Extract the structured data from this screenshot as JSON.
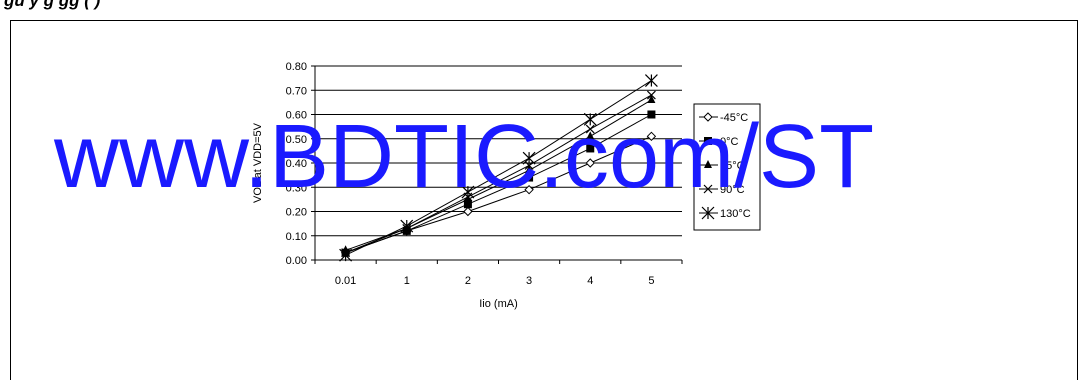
{
  "heading": "gu    y  g        gg    (       )",
  "watermark": "www.BDTIC.com/ST",
  "chart_data": {
    "type": "line",
    "xlabel": "Iio (mA)",
    "ylabel": "VOL at VDD=5V",
    "categories": [
      "0.01",
      "1",
      "2",
      "3",
      "4",
      "5"
    ],
    "yticks": [
      "0.00",
      "0.10",
      "0.20",
      "0.30",
      "0.40",
      "0.50",
      "0.60",
      "0.70",
      "0.80"
    ],
    "ylim": [
      0,
      0.8
    ],
    "grid": true,
    "legend_position": "right",
    "series": [
      {
        "name": "-45°C",
        "marker": "diamond-open",
        "values": [
          0.03,
          0.12,
          0.2,
          0.29,
          0.4,
          0.51
        ]
      },
      {
        "name": "0°C",
        "marker": "square-filled",
        "values": [
          0.03,
          0.12,
          0.23,
          0.34,
          0.46,
          0.6
        ]
      },
      {
        "name": "25°C",
        "marker": "triangle-filled",
        "values": [
          0.04,
          0.13,
          0.25,
          0.37,
          0.51,
          0.66
        ]
      },
      {
        "name": "90°C",
        "marker": "x",
        "values": [
          0.03,
          0.13,
          0.26,
          0.39,
          0.54,
          0.68
        ]
      },
      {
        "name": "130°C",
        "marker": "star",
        "values": [
          0.02,
          0.14,
          0.28,
          0.42,
          0.58,
          0.74
        ]
      }
    ]
  }
}
